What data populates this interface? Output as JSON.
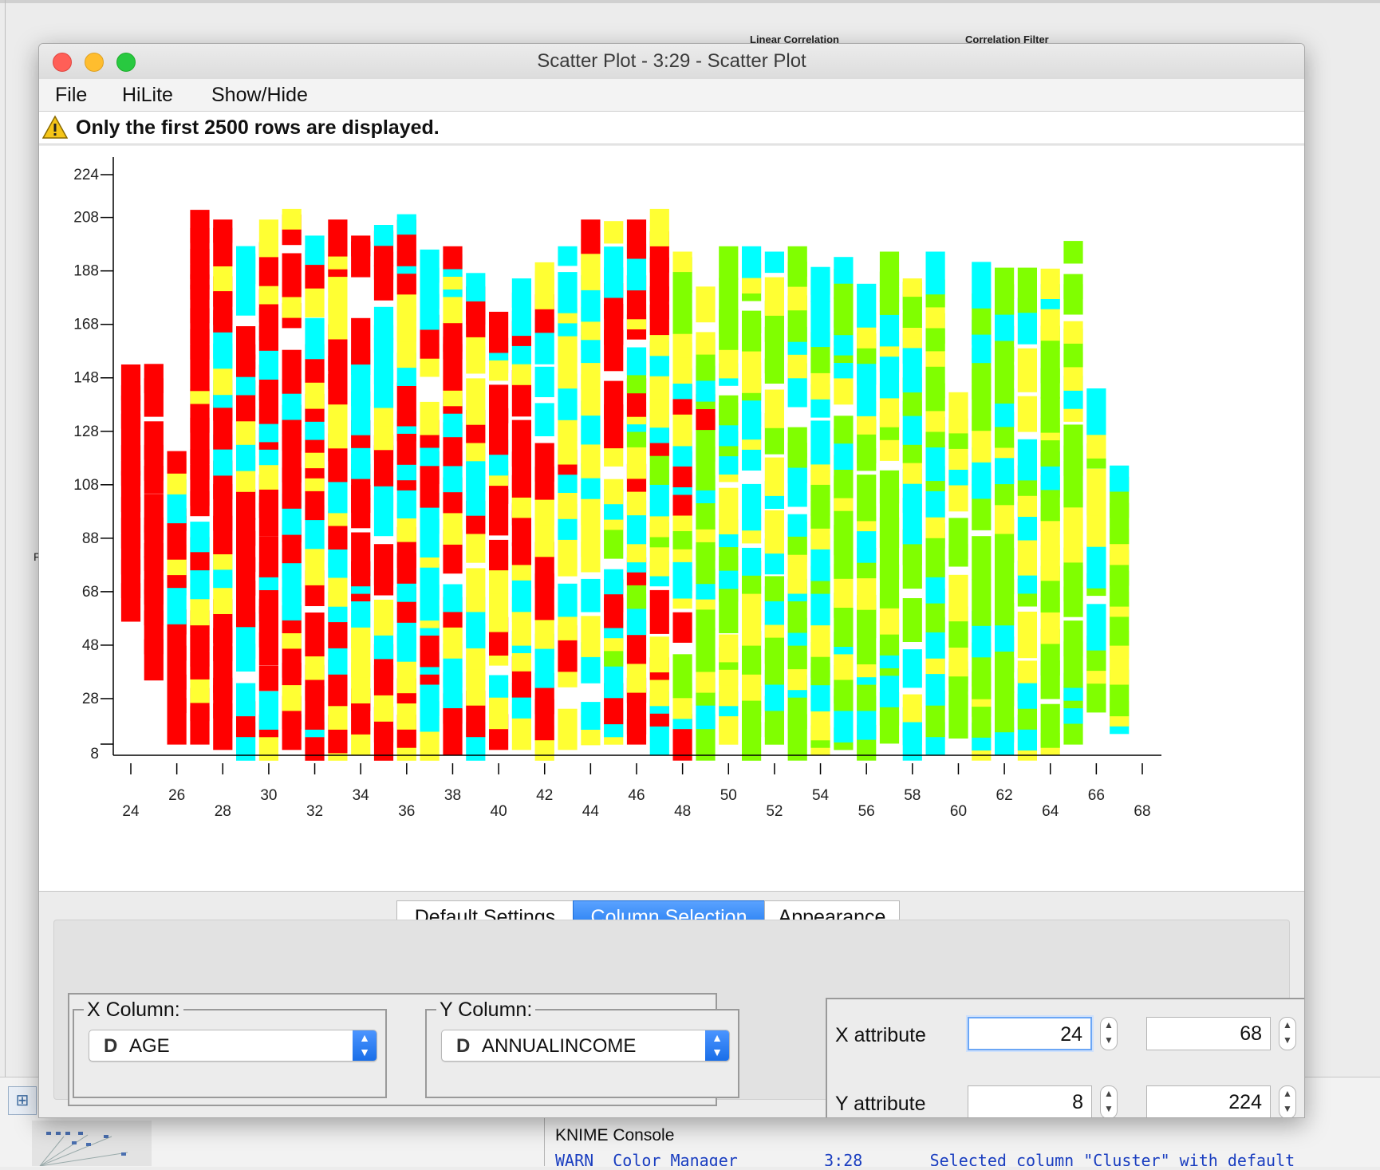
{
  "background": {
    "partial_labels": [
      "Linear Correlation",
      "Correlation Filter"
    ],
    "left_edge_char": "F",
    "console": {
      "title": "KNIME Console",
      "line": "WARN  Color Manager         3:28       Selected column \"Cluster\" with default"
    }
  },
  "window": {
    "title": "Scatter Plot - 3:29 - Scatter Plot",
    "menu": [
      "File",
      "HiLite",
      "Show/Hide"
    ],
    "warning": "Only the first 2500 rows are displayed."
  },
  "colors": {
    "red": "#ff0000",
    "cyan": "#00ffff",
    "yellow": "#ffff33",
    "green": "#80ff00",
    "tab_active": "#2a80f2"
  },
  "chart_data": {
    "type": "scatter",
    "x_axis": {
      "ticks": [
        24,
        26,
        28,
        30,
        32,
        34,
        36,
        38,
        40,
        42,
        44,
        46,
        48,
        50,
        52,
        54,
        56,
        58,
        60,
        62,
        64,
        66,
        68
      ],
      "range": [
        24,
        68
      ]
    },
    "y_axis": {
      "ticks": [
        8,
        28,
        48,
        68,
        88,
        108,
        128,
        148,
        168,
        188,
        208,
        224
      ],
      "range": [
        8,
        224
      ]
    },
    "marker": "square",
    "color_order": [
      "red",
      "cyan",
      "yellow",
      "green"
    ],
    "bands": [
      {
        "x": 24,
        "ymin": 60,
        "ymax": 150,
        "mix": [
          1,
          0,
          0,
          0
        ]
      },
      {
        "x": 25,
        "ymin": 38,
        "ymax": 150,
        "mix": [
          0.8,
          0.15,
          0.05,
          0
        ]
      },
      {
        "x": 26,
        "ymin": 14,
        "ymax": 118,
        "mix": [
          0.65,
          0.15,
          0.2,
          0
        ]
      },
      {
        "x": 27,
        "ymin": 14,
        "ymax": 208,
        "mix": [
          0.8,
          0.1,
          0.1,
          0
        ]
      },
      {
        "x": 28,
        "ymin": 12,
        "ymax": 204,
        "mix": [
          0.7,
          0.15,
          0.15,
          0
        ]
      },
      {
        "x": 29,
        "ymin": 8,
        "ymax": 196,
        "mix": [
          0.6,
          0.2,
          0.2,
          0
        ]
      },
      {
        "x": 30,
        "ymin": 8,
        "ymax": 204,
        "mix": [
          0.55,
          0.25,
          0.2,
          0
        ]
      },
      {
        "x": 31,
        "ymin": 12,
        "ymax": 208,
        "mix": [
          0.5,
          0.3,
          0.2,
          0
        ]
      },
      {
        "x": 32,
        "ymin": 8,
        "ymax": 198,
        "mix": [
          0.45,
          0.3,
          0.25,
          0
        ]
      },
      {
        "x": 33,
        "ymin": 8,
        "ymax": 204,
        "mix": [
          0.45,
          0.3,
          0.25,
          0
        ]
      },
      {
        "x": 34,
        "ymin": 10,
        "ymax": 198,
        "mix": [
          0.4,
          0.3,
          0.3,
          0
        ]
      },
      {
        "x": 35,
        "ymin": 8,
        "ymax": 202,
        "mix": [
          0.4,
          0.3,
          0.3,
          0
        ]
      },
      {
        "x": 36,
        "ymin": 8,
        "ymax": 206,
        "mix": [
          0.35,
          0.35,
          0.3,
          0
        ]
      },
      {
        "x": 37,
        "ymin": 8,
        "ymax": 196,
        "mix": [
          0.45,
          0.25,
          0.3,
          0
        ]
      },
      {
        "x": 38,
        "ymin": 10,
        "ymax": 194,
        "mix": [
          0.45,
          0.25,
          0.3,
          0
        ]
      },
      {
        "x": 39,
        "ymin": 8,
        "ymax": 184,
        "mix": [
          0.35,
          0.3,
          0.35,
          0
        ]
      },
      {
        "x": 40,
        "ymin": 12,
        "ymax": 170,
        "mix": [
          0.35,
          0.3,
          0.35,
          0
        ]
      },
      {
        "x": 41,
        "ymin": 12,
        "ymax": 182,
        "mix": [
          0.35,
          0.3,
          0.35,
          0
        ]
      },
      {
        "x": 42,
        "ymin": 8,
        "ymax": 188,
        "mix": [
          0.35,
          0.3,
          0.35,
          0
        ]
      },
      {
        "x": 43,
        "ymin": 12,
        "ymax": 194,
        "mix": [
          0.3,
          0.35,
          0.35,
          0
        ]
      },
      {
        "x": 44,
        "ymin": 8,
        "ymax": 204,
        "mix": [
          0.25,
          0.35,
          0.4,
          0
        ]
      },
      {
        "x": 45,
        "ymin": 14,
        "ymax": 204,
        "mix": [
          0.3,
          0.3,
          0.35,
          0.05
        ]
      },
      {
        "x": 46,
        "ymin": 14,
        "ymax": 204,
        "mix": [
          0.3,
          0.25,
          0.35,
          0.1
        ]
      },
      {
        "x": 47,
        "ymin": 10,
        "ymax": 208,
        "mix": [
          0.25,
          0.3,
          0.35,
          0.1
        ]
      },
      {
        "x": 48,
        "ymin": 8,
        "ymax": 192,
        "mix": [
          0.2,
          0.3,
          0.3,
          0.2
        ]
      },
      {
        "x": 49,
        "ymin": 8,
        "ymax": 184,
        "mix": [
          0.1,
          0.3,
          0.3,
          0.3
        ]
      },
      {
        "x": 50,
        "ymin": 14,
        "ymax": 194,
        "mix": [
          0.05,
          0.3,
          0.3,
          0.35
        ]
      },
      {
        "x": 51,
        "ymin": 8,
        "ymax": 194,
        "mix": [
          0.05,
          0.3,
          0.3,
          0.35
        ]
      },
      {
        "x": 52,
        "ymin": 14,
        "ymax": 192,
        "mix": [
          0,
          0.3,
          0.3,
          0.4
        ]
      },
      {
        "x": 53,
        "ymin": 8,
        "ymax": 194,
        "mix": [
          0,
          0.3,
          0.25,
          0.45
        ]
      },
      {
        "x": 54,
        "ymin": 10,
        "ymax": 192,
        "mix": [
          0,
          0.3,
          0.25,
          0.45
        ]
      },
      {
        "x": 55,
        "ymin": 12,
        "ymax": 190,
        "mix": [
          0,
          0.3,
          0.25,
          0.45
        ]
      },
      {
        "x": 56,
        "ymin": 8,
        "ymax": 180,
        "mix": [
          0,
          0.3,
          0.2,
          0.5
        ]
      },
      {
        "x": 57,
        "ymin": 8,
        "ymax": 192,
        "mix": [
          0,
          0.3,
          0.2,
          0.5
        ]
      },
      {
        "x": 58,
        "ymin": 8,
        "ymax": 182,
        "mix": [
          0,
          0.3,
          0.2,
          0.5
        ]
      },
      {
        "x": 59,
        "ymin": 10,
        "ymax": 192,
        "mix": [
          0,
          0.3,
          0.2,
          0.5
        ]
      },
      {
        "x": 60,
        "ymin": 8,
        "ymax": 140,
        "mix": [
          0,
          0.3,
          0.2,
          0.5
        ]
      },
      {
        "x": 61,
        "ymin": 8,
        "ymax": 192,
        "mix": [
          0,
          0.3,
          0.2,
          0.5
        ]
      },
      {
        "x": 62,
        "ymin": 10,
        "ymax": 186,
        "mix": [
          0,
          0.3,
          0.2,
          0.5
        ]
      },
      {
        "x": 63,
        "ymin": 8,
        "ymax": 186,
        "mix": [
          0,
          0.25,
          0.25,
          0.5
        ]
      },
      {
        "x": 64,
        "ymin": 10,
        "ymax": 186,
        "mix": [
          0,
          0.25,
          0.25,
          0.5
        ]
      },
      {
        "x": 65,
        "ymin": 14,
        "ymax": 196,
        "mix": [
          0,
          0.25,
          0.25,
          0.5
        ]
      },
      {
        "x": 66,
        "ymin": 26,
        "ymax": 144,
        "mix": [
          0,
          0.2,
          0.3,
          0.5
        ]
      },
      {
        "x": 67,
        "ymin": 18,
        "ymax": 112,
        "mix": [
          0,
          0.1,
          0.4,
          0.5
        ]
      }
    ]
  },
  "tabs": [
    "Default Settings",
    "Column Selection",
    "Appearance"
  ],
  "active_tab": "Column Selection",
  "column_selection": {
    "x_column": {
      "title": "X Column:",
      "type_badge": "D",
      "value": "AGE"
    },
    "y_column": {
      "title": "Y Column:",
      "type_badge": "D",
      "value": "ANNUALINCOME"
    },
    "x_attribute": {
      "label": "X attribute",
      "min": "24",
      "max": "68"
    },
    "y_attribute": {
      "label": "Y attribute",
      "min": "8",
      "max": "224"
    }
  }
}
